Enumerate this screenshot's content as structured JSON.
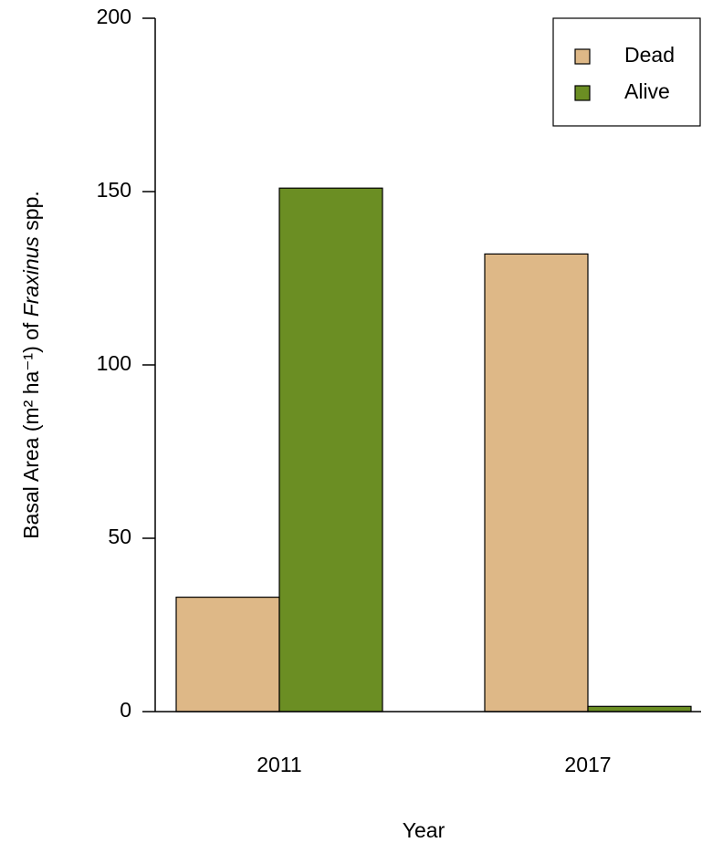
{
  "chart_data": {
    "type": "bar",
    "y_label": [
      "Basal Area (m² ha⁻¹) of ",
      "Fraxinus",
      " spp."
    ],
    "x_label": "Year",
    "categories": [
      "2011",
      "2017"
    ],
    "series": [
      {
        "name": "Dead",
        "color": "#deb887",
        "values": [
          33,
          132
        ]
      },
      {
        "name": "Alive",
        "color": "#6b8e23",
        "values": [
          151,
          1.5
        ]
      }
    ],
    "ylim": [
      0,
      200
    ],
    "yticks": [
      0,
      50,
      100,
      150,
      200
    ],
    "legend": "top-right"
  }
}
